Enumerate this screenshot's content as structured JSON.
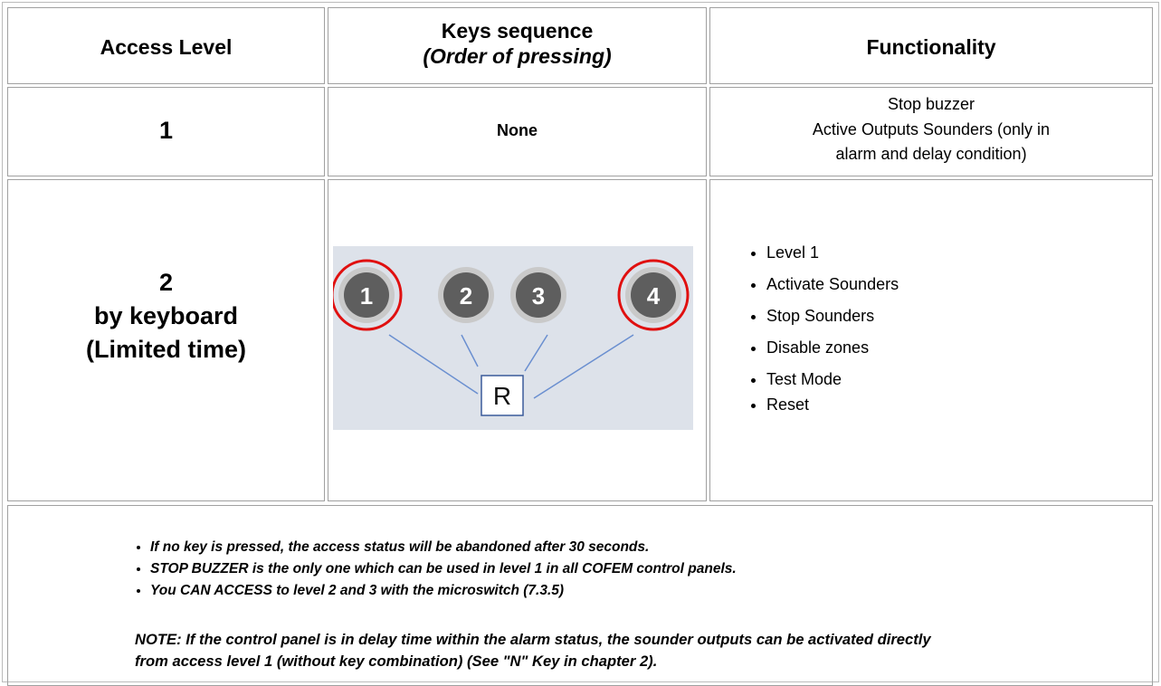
{
  "table": {
    "header": {
      "access_level": "Access Level",
      "keys": [
        "Keys sequence",
        "(Order of pressing)"
      ],
      "functionality": "Functionality"
    },
    "rows": [
      {
        "level": [
          "1"
        ],
        "keys": "None",
        "functionality": [
          "Stop buzzer",
          "Active Outputs Sounders (only in",
          "alarm and delay condition)"
        ]
      },
      {
        "level": [
          "2",
          "by keyboard",
          "(Limited time)"
        ],
        "keys_diagram": {
          "keys": [
            "1",
            "2",
            "3",
            "4"
          ],
          "center": "R"
        },
        "functionality": [
          "Level 1",
          "Activate Sounders",
          "Stop Sounders",
          "Disable zones",
          "Test Mode",
          "Reset"
        ]
      }
    ],
    "notes": {
      "bullets": [
        "If no key is pressed, the access status will be abandoned after 30 seconds.",
        "STOP BUZZER is the only one which can be used in level 1 in all COFEM control panels.",
        "You CAN ACCESS to level 2 and 3 with the microswitch (7.3.5)"
      ],
      "note": [
        "NOTE: If the control panel is in delay time within the alarm status, the sounder outputs can be activated directly",
        "from access level 1 (without key combination) (See \"N\" Key in chapter 2)."
      ]
    }
  }
}
